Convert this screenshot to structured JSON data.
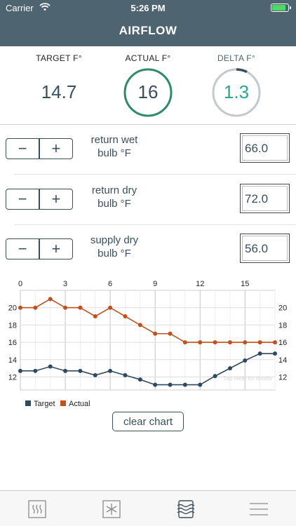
{
  "status_bar": {
    "carrier": "Carrier",
    "time": "5:26 PM"
  },
  "nav": {
    "title": "AIRFLOW"
  },
  "stats": {
    "target": {
      "label": "TARGET F°",
      "value": "14.7"
    },
    "actual": {
      "label": "ACTUAL F°",
      "value": "16"
    },
    "delta": {
      "label": "DELTA F°",
      "value": "1.3"
    }
  },
  "controls": [
    {
      "label_line1": "return wet",
      "label_line2": "bulb °F",
      "value": "66.0",
      "minus": "−",
      "plus": "+"
    },
    {
      "label_line1": "return dry",
      "label_line2": "bulb °F",
      "value": "72.0",
      "minus": "−",
      "plus": "+"
    },
    {
      "label_line1": "supply dry",
      "label_line2": "bulb °F",
      "value": "56.0",
      "minus": "−",
      "plus": "+"
    }
  ],
  "chart_data": {
    "type": "line",
    "x": [
      0,
      1,
      2,
      3,
      4,
      5,
      6,
      7,
      8,
      9,
      10,
      11,
      12,
      13,
      14,
      15,
      16,
      17
    ],
    "x_ticks": [
      "0",
      "3",
      "6",
      "9",
      "12",
      "15"
    ],
    "x_tick_values": [
      0,
      3,
      6,
      9,
      12,
      15
    ],
    "xlim": [
      0,
      17
    ],
    "y_ticks": [
      "12",
      "14",
      "16",
      "18",
      "20"
    ],
    "y_tick_values": [
      12,
      14,
      16,
      18,
      20
    ],
    "ylim": [
      10.5,
      22
    ],
    "series": [
      {
        "name": "Target",
        "color": "#2f4a5e",
        "values": [
          12.7,
          12.7,
          13.2,
          12.7,
          12.7,
          12.2,
          12.7,
          12.2,
          11.7,
          11.1,
          11.1,
          11.1,
          11.1,
          12.1,
          13.0,
          13.9,
          14.7,
          14.7
        ]
      },
      {
        "name": "Actual",
        "color": "#c0501e",
        "values": [
          20,
          20,
          21,
          20,
          20,
          19,
          20,
          19,
          18,
          17,
          17,
          16,
          16,
          16,
          16,
          16,
          16,
          16
        ]
      }
    ],
    "legend_position": "bottom-left",
    "grid": true,
    "watermark": "Tap node for details"
  },
  "clear_button": {
    "label": "clear chart"
  },
  "tabs": [
    {
      "name": "heat-icon"
    },
    {
      "name": "snowflake-icon"
    },
    {
      "name": "airflow-icon"
    },
    {
      "name": "menu-icon"
    }
  ],
  "colors": {
    "header": "#4e6470",
    "accent_green": "#2e8b6a",
    "delta_text": "#26a98b",
    "ring_grey": "#c5c9cb"
  }
}
